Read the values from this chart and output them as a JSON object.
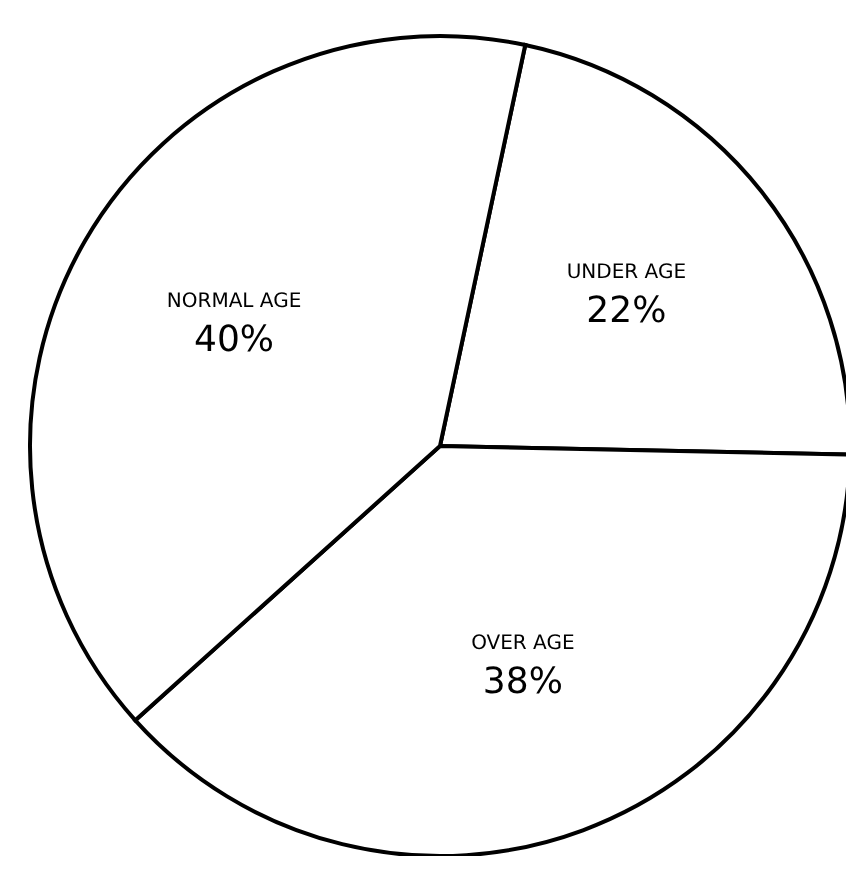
{
  "chart_data": {
    "type": "pie",
    "categories": [
      "UNDER AGE",
      "OVER AGE",
      "NORMAL AGE"
    ],
    "values": [
      22,
      38,
      40
    ],
    "colors": [
      "#ffffff",
      "#ffffff",
      "#ffffff"
    ],
    "value_labels": [
      "22%",
      "38%",
      "40%"
    ]
  }
}
